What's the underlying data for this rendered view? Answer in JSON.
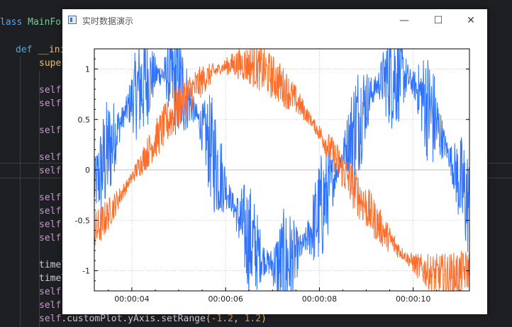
{
  "editor": {
    "lines": [
      {
        "id": "l1",
        "top": 20
      },
      {
        "id": "l2",
        "top": 59
      }
    ],
    "class_line": {
      "keyword": "lass",
      "name": "MainFor"
    },
    "def_line": {
      "keyword": "def",
      "name": "__ini"
    },
    "super_line": "super",
    "self_fragment": "self.",
    "self_lines_count": 13,
    "time_fragment": "timel",
    "last_line": {
      "self": "self",
      "rest": ".customPlot.yAxis.setRange",
      "open": "(",
      "a": "-1.2",
      "sep": ", ",
      "b": "1.2",
      "close": ")"
    }
  },
  "window": {
    "title": "实时数据演示",
    "minimize_glyph": "—",
    "maximize_glyph": "☐",
    "close_glyph": "✕"
  },
  "chart_data": {
    "type": "line",
    "x_ticks": [
      "00:00:04",
      "00:00:06",
      "00:00:08",
      "00:00:10"
    ],
    "y_ticks": [
      "1",
      "0.5",
      "0",
      "-0.5",
      "-1"
    ],
    "ylim": [
      -1.2,
      1.2
    ],
    "xlim_seconds": [
      3.2,
      11.2
    ],
    "grid": true,
    "series": [
      {
        "color": "#2f73ff",
        "description": "sin-like noisy signal"
      },
      {
        "color": "#ff6d2a",
        "description": "cos-like noisy signal"
      }
    ]
  }
}
